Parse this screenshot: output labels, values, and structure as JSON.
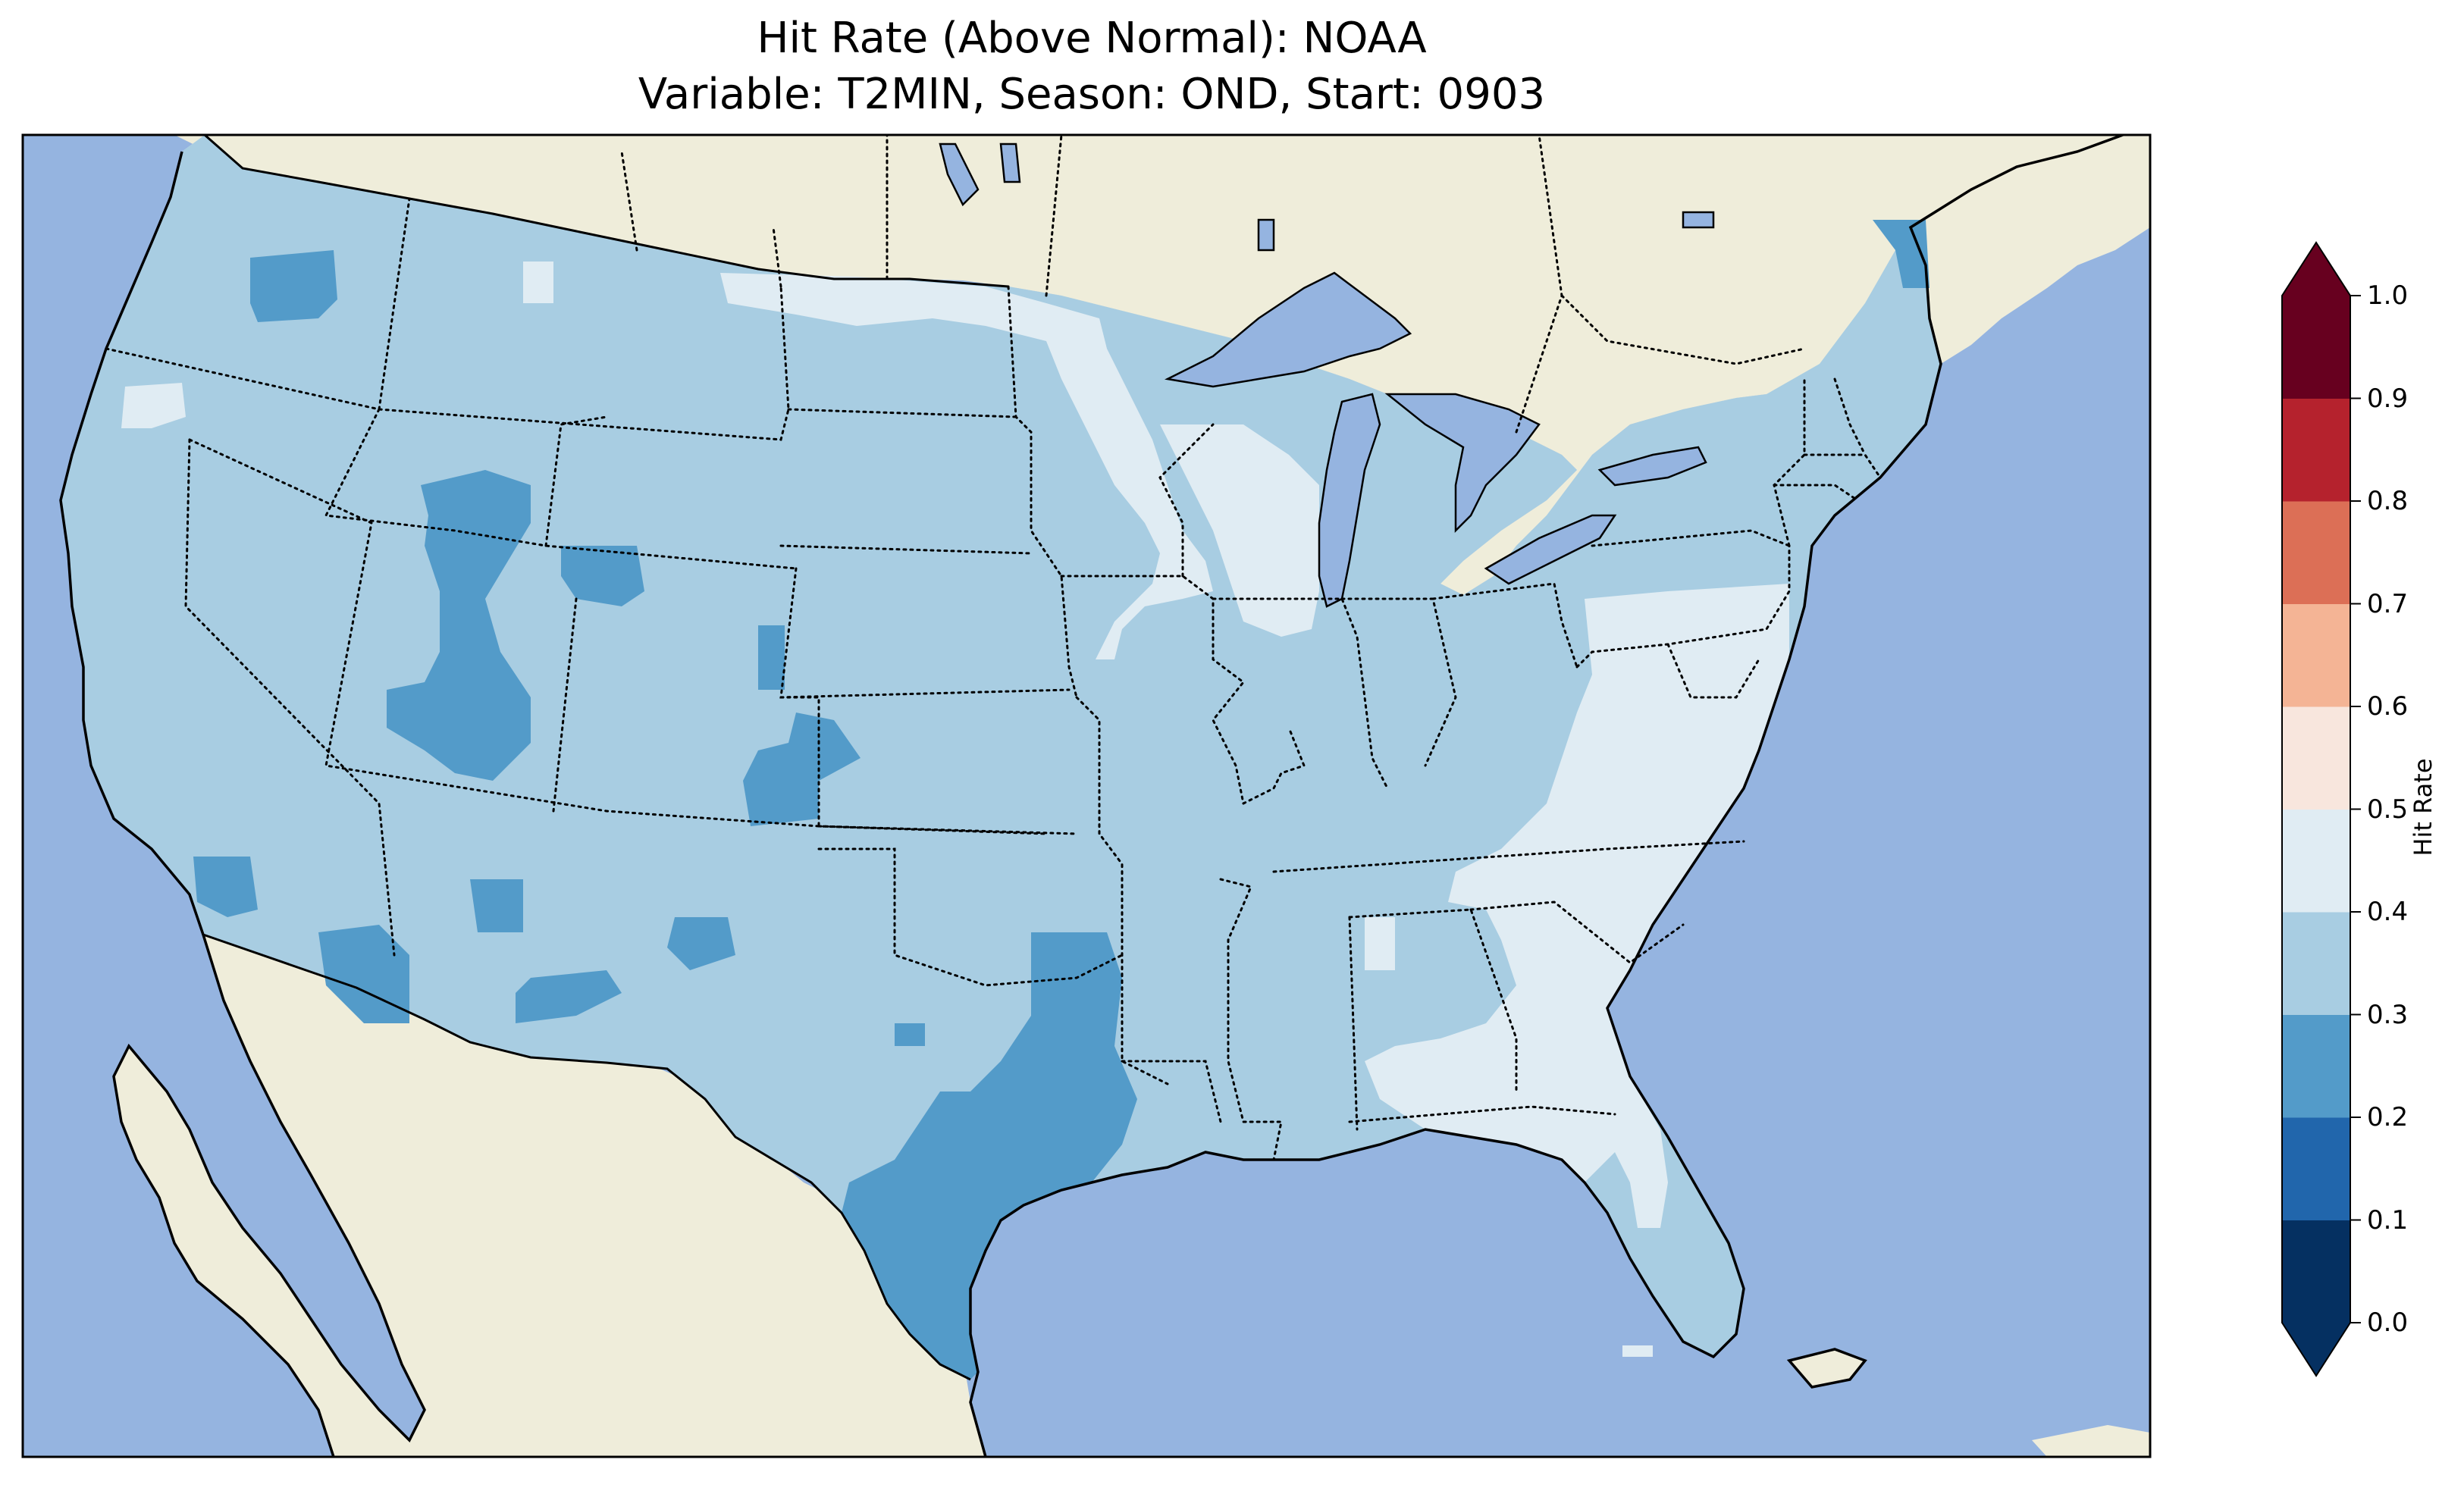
{
  "title_line1": "Hit Rate (Above Normal): NOAA",
  "title_line2": "Variable: T2MIN, Season: OND, Start: 0903",
  "colors": {
    "ocean": "#95b4e0",
    "land": "#efedda",
    "lake": "#95b4e0"
  },
  "colorbar": {
    "label": "Hit Rate",
    "ticks": [
      "0.0",
      "0.1",
      "0.2",
      "0.3",
      "0.4",
      "0.5",
      "0.6",
      "0.7",
      "0.8",
      "0.9",
      "1.0"
    ],
    "bins": [
      {
        "range": [
          0.0,
          0.1
        ],
        "color": "#053061"
      },
      {
        "range": [
          0.1,
          0.2
        ],
        "color": "#2166ac"
      },
      {
        "range": [
          0.2,
          0.3
        ],
        "color": "#539bc9"
      },
      {
        "range": [
          0.3,
          0.4
        ],
        "color": "#a8cde2"
      },
      {
        "range": [
          0.4,
          0.5
        ],
        "color": "#e0ecf3"
      },
      {
        "range": [
          0.5,
          0.6
        ],
        "color": "#f8e6dd"
      },
      {
        "range": [
          0.6,
          0.7
        ],
        "color": "#f4b495"
      },
      {
        "range": [
          0.7,
          0.8
        ],
        "color": "#dc6f56"
      },
      {
        "range": [
          0.8,
          0.9
        ],
        "color": "#b5222d"
      },
      {
        "range": [
          0.9,
          1.0
        ],
        "color": "#67001f"
      }
    ],
    "extend_min_color": "#053061",
    "extend_max_color": "#67001f"
  }
}
